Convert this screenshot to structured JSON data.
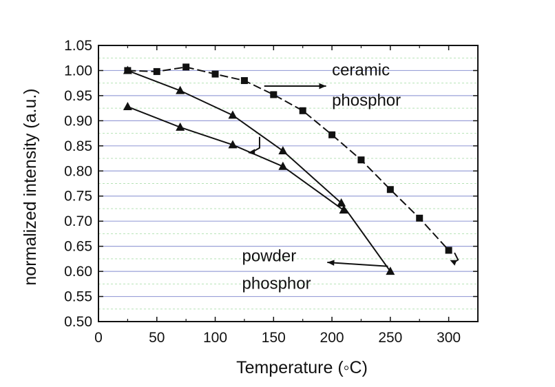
{
  "chart_data": {
    "type": "line",
    "xlabel": "Temperature (◦C)",
    "ylabel": "normalized intensity (a.u.)",
    "xlim": [
      0,
      325
    ],
    "ylim": [
      0.5,
      1.05
    ],
    "x_ticks": [
      "0",
      "50",
      "100",
      "150",
      "200",
      "250",
      "300"
    ],
    "y_ticks": [
      "0.50",
      "0.55",
      "0.60",
      "0.65",
      "0.70",
      "0.75",
      "0.80",
      "0.85",
      "0.90",
      "0.95",
      "1.00",
      "1.05"
    ],
    "grid": true,
    "series": [
      {
        "marker": "square",
        "line_style": "dashed",
        "x": [
          25,
          50,
          75,
          100,
          125,
          150,
          175,
          200,
          225,
          250,
          275,
          300
        ],
        "y": [
          1.0,
          0.998,
          1.007,
          0.993,
          0.98,
          0.952,
          0.92,
          0.872,
          0.822,
          0.763,
          0.706,
          0.642
        ]
      },
      {
        "marker": "triangle",
        "line_style": "solid",
        "x": [
          25,
          70,
          115,
          158,
          208,
          250
        ],
        "y": [
          1.0,
          0.96,
          0.911,
          0.84,
          0.736,
          0.6
        ]
      },
      {
        "marker": "triangle",
        "line_style": "solid",
        "x": [
          25,
          70,
          115,
          158,
          210
        ],
        "y": [
          0.928,
          0.887,
          0.852,
          0.809,
          0.722
        ]
      }
    ],
    "annotations": [
      {
        "text": "ceramic",
        "x": 200,
        "y": 0.99
      },
      {
        "text": "phosphor",
        "x": 200,
        "y": 0.93
      },
      {
        "text": "powder",
        "x": 123,
        "y": 0.62
      },
      {
        "text": "phosphor",
        "x": 123,
        "y": 0.565
      }
    ],
    "colors": {
      "axis": "#111111",
      "grid_major": "#9aa0d8",
      "grid_minor": "#b5e2b5",
      "series": "#111111"
    }
  }
}
